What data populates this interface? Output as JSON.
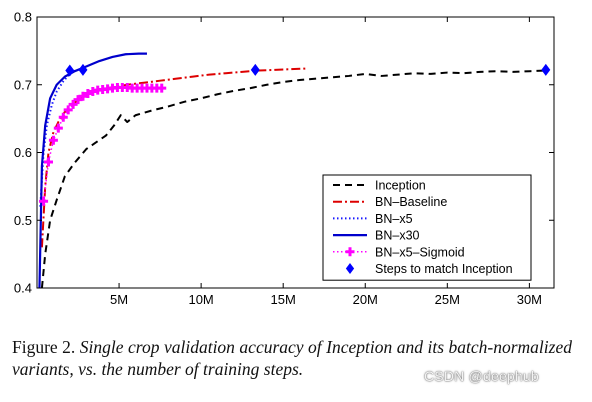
{
  "chart_data": {
    "type": "line",
    "title": "",
    "xlabel": "",
    "ylabel": "",
    "xlim": [
      0,
      31500000
    ],
    "ylim": [
      0.4,
      0.8
    ],
    "xticks": [
      {
        "value": 5000000,
        "label": "5M"
      },
      {
        "value": 10000000,
        "label": "10M"
      },
      {
        "value": 15000000,
        "label": "15M"
      },
      {
        "value": 20000000,
        "label": "20M"
      },
      {
        "value": 25000000,
        "label": "25M"
      },
      {
        "value": 30000000,
        "label": "30M"
      }
    ],
    "yticks": [
      {
        "value": 0.4,
        "label": "0.4"
      },
      {
        "value": 0.5,
        "label": "0.5"
      },
      {
        "value": 0.6,
        "label": "0.6"
      },
      {
        "value": 0.7,
        "label": "0.7"
      },
      {
        "value": 0.8,
        "label": "0.8"
      }
    ],
    "grid": false,
    "legend_position": "bottom-right",
    "series": [
      {
        "name": "Inception",
        "color": "#000000",
        "style": "dashed",
        "x": [
          300000,
          500000,
          800000,
          1200000,
          1700000,
          2300000,
          3000000,
          3600000,
          4200000,
          4700000,
          5100000,
          5500000,
          6000000,
          7000000,
          8000000,
          9000000,
          10000000,
          11000000,
          12000000,
          13000000,
          14000000,
          15000000,
          16000000,
          17000000,
          18000000,
          19000000,
          20000000,
          21000000,
          22000000,
          23000000,
          24000000,
          25000000,
          26000000,
          27000000,
          28000000,
          29000000,
          30000000,
          31000000
        ],
        "y": [
          0.4,
          0.45,
          0.5,
          0.53,
          0.565,
          0.585,
          0.605,
          0.615,
          0.625,
          0.64,
          0.655,
          0.645,
          0.655,
          0.662,
          0.668,
          0.675,
          0.68,
          0.686,
          0.691,
          0.695,
          0.7,
          0.704,
          0.707,
          0.709,
          0.711,
          0.713,
          0.716,
          0.713,
          0.715,
          0.717,
          0.716,
          0.718,
          0.717,
          0.719,
          0.72,
          0.719,
          0.72,
          0.721
        ]
      },
      {
        "name": "BN–Baseline",
        "color": "#dd0000",
        "style": "dashdot",
        "x": [
          300000,
          500000,
          700000,
          1000000,
          1300000,
          1700000,
          2200000,
          2800000,
          3500000,
          4500000,
          5500000,
          6500000,
          7500000,
          8500000,
          9500000,
          10500000,
          11500000,
          12500000,
          13500000,
          14500000,
          15500000,
          16500000
        ],
        "y": [
          0.46,
          0.55,
          0.6,
          0.63,
          0.645,
          0.66,
          0.672,
          0.682,
          0.69,
          0.696,
          0.7,
          0.703,
          0.706,
          0.709,
          0.712,
          0.715,
          0.717,
          0.719,
          0.721,
          0.722,
          0.723,
          0.724
        ]
      },
      {
        "name": "BN–x5",
        "color": "#1a1aff",
        "style": "dotted",
        "x": [
          200000,
          400000,
          600000,
          900000,
          1200000,
          1600000,
          2000000,
          2300000
        ],
        "y": [
          0.52,
          0.6,
          0.64,
          0.67,
          0.69,
          0.705,
          0.716,
          0.721
        ]
      },
      {
        "name": "BN–x30",
        "color": "#0000cc",
        "style": "solid",
        "x": [
          150000,
          300000,
          500000,
          800000,
          1200000,
          1700000,
          2300000,
          3000000,
          3800000,
          4600000,
          5400000,
          6200000,
          6700000
        ],
        "y": [
          0.4,
          0.58,
          0.64,
          0.68,
          0.7,
          0.712,
          0.72,
          0.727,
          0.735,
          0.741,
          0.745,
          0.746,
          0.746
        ]
      },
      {
        "name": "BN–x5–Sigmoid",
        "color": "#ff00ff",
        "style": "plus",
        "x": [
          400000,
          700000,
          1000000,
          1300000,
          1600000,
          1900000,
          2200000,
          2500000,
          2800000,
          3100000,
          3400000,
          3700000,
          4000000,
          4300000,
          4600000,
          4900000,
          5200000,
          5500000,
          5800000,
          6100000,
          6400000,
          6700000,
          7000000,
          7300000,
          7600000
        ],
        "y": [
          0.528,
          0.586,
          0.618,
          0.636,
          0.652,
          0.663,
          0.671,
          0.678,
          0.683,
          0.687,
          0.69,
          0.692,
          0.693,
          0.694,
          0.695,
          0.696,
          0.696,
          0.696,
          0.695,
          0.695,
          0.695,
          0.695,
          0.695,
          0.695,
          0.695
        ]
      },
      {
        "name": "Steps to match Inception",
        "color": "#0000ff",
        "style": "diamond",
        "x": [
          2000000,
          2800000,
          13300000,
          31000000
        ],
        "y": [
          0.721,
          0.722,
          0.722,
          0.722
        ]
      }
    ]
  },
  "caption": {
    "lead": "Figure 2.",
    "body": " Single crop validation accuracy of Inception and its batch-normalized variants, vs. the number of training steps."
  },
  "watermark": "CSDN @deephub"
}
